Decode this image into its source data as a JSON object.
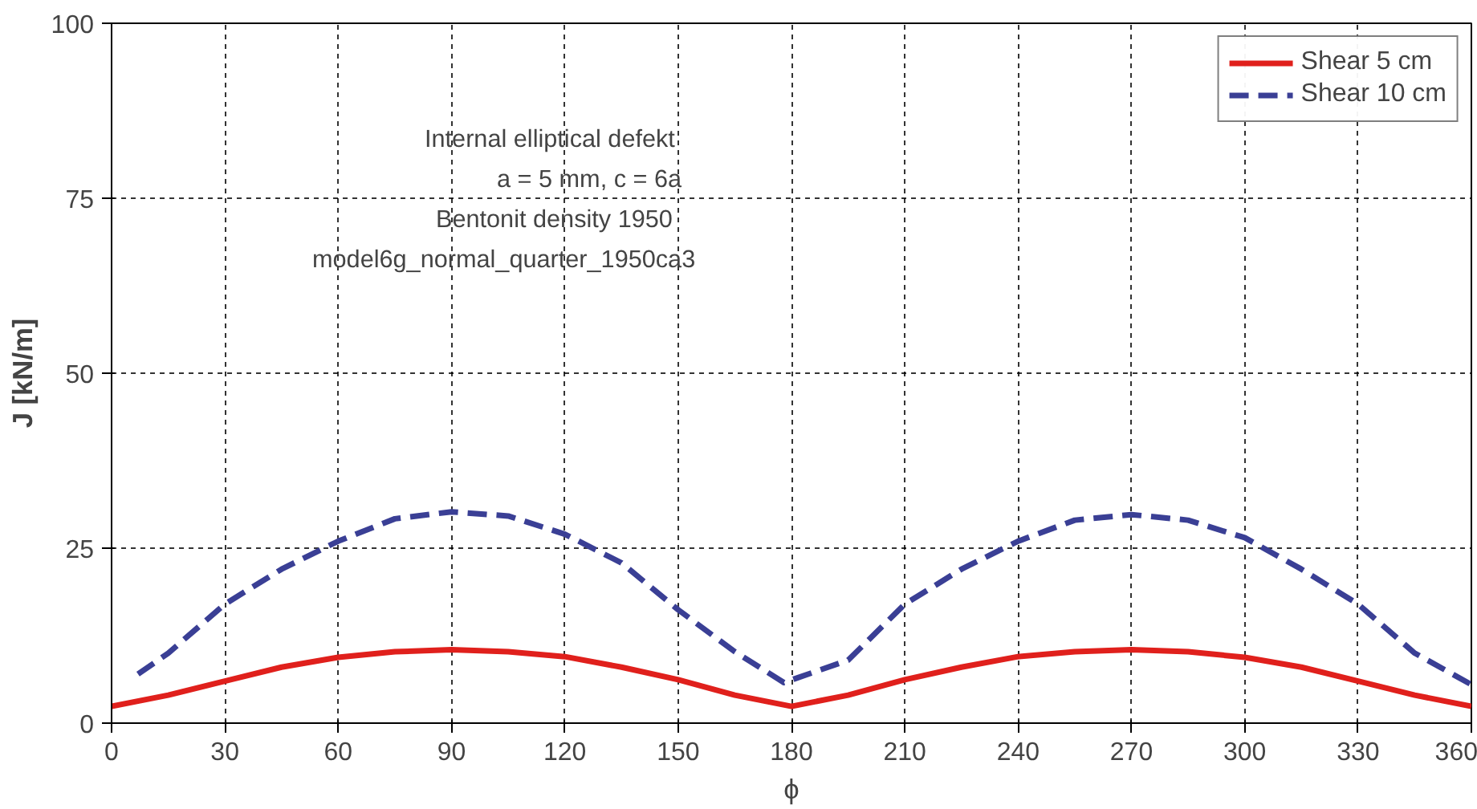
{
  "chart_data": {
    "type": "line",
    "xlabel": "ϕ",
    "ylabel": "J [kN/m]",
    "xlim": [
      0,
      360
    ],
    "ylim": [
      0,
      100
    ],
    "xticks": [
      0,
      30,
      60,
      90,
      120,
      150,
      180,
      210,
      240,
      270,
      300,
      330,
      360
    ],
    "yticks": [
      0,
      25,
      50,
      75,
      100
    ],
    "grid": true,
    "legend": "top right",
    "annotations": [
      "Internal elliptical defekt",
      "a = 5 mm, c = 6a",
      "Bentonit density 1950",
      "model6g_normal_quarter_1950ca3"
    ],
    "series": [
      {
        "name": "Shear 5 cm",
        "color": "#e0201c",
        "line_style": "solid",
        "x": [
          0,
          15,
          30,
          45,
          60,
          75,
          90,
          105,
          120,
          135,
          150,
          165,
          180,
          195,
          210,
          225,
          240,
          255,
          270,
          285,
          300,
          315,
          330,
          345,
          360
        ],
        "values": [
          2.4,
          4,
          6,
          8,
          9.4,
          10.2,
          10.5,
          10.2,
          9.5,
          8,
          6.2,
          4,
          2.4,
          4,
          6.2,
          8,
          9.5,
          10.2,
          10.5,
          10.2,
          9.4,
          8,
          6,
          4,
          2.4
        ]
      },
      {
        "name": "Shear 10 cm",
        "color": "#3a3f95",
        "line_style": "dashed",
        "x": [
          7,
          15,
          30,
          45,
          60,
          75,
          90,
          105,
          120,
          135,
          150,
          165,
          178,
          195,
          210,
          225,
          240,
          255,
          270,
          285,
          300,
          315,
          330,
          345,
          360
        ],
        "values": [
          7,
          10,
          17,
          22,
          26,
          29.2,
          30.2,
          29.6,
          27,
          22.9,
          16.2,
          10.2,
          5.8,
          9,
          17,
          22,
          26,
          29,
          29.8,
          29,
          26.5,
          22,
          17,
          10,
          5.5
        ]
      }
    ]
  }
}
